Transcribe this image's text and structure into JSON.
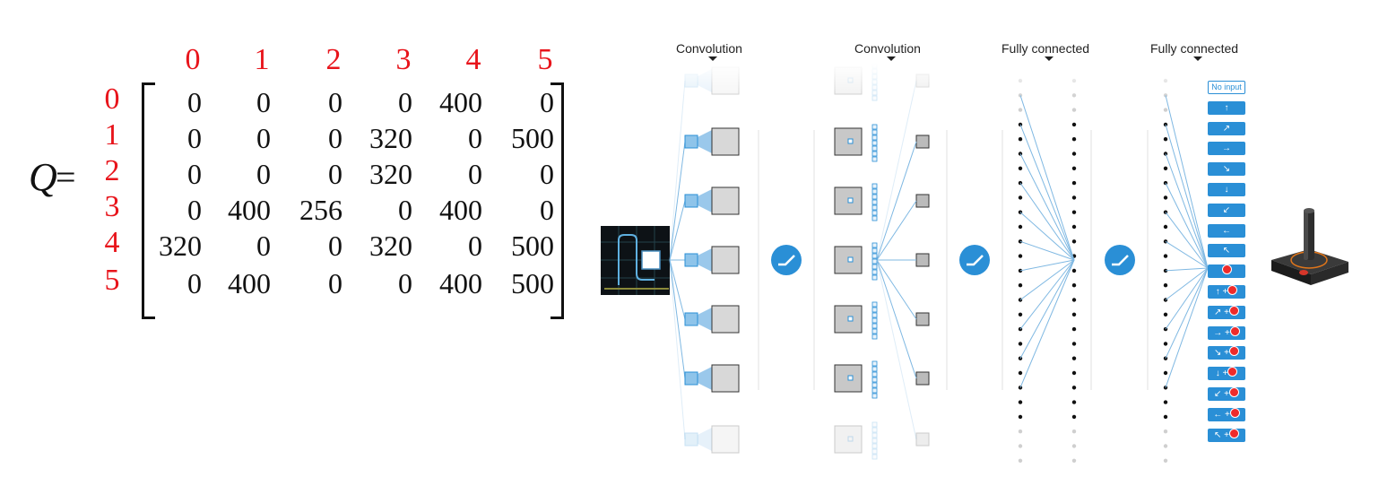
{
  "matrix": {
    "symbol": "Q",
    "equals": "=",
    "column_indices": [
      "0",
      "1",
      "2",
      "3",
      "4",
      "5"
    ],
    "row_indices": [
      "0",
      "1",
      "2",
      "3",
      "4",
      "5"
    ],
    "rows": [
      [
        "0",
        "0",
        "0",
        "0",
        "400",
        "0"
      ],
      [
        "0",
        "0",
        "0",
        "320",
        "0",
        "500"
      ],
      [
        "0",
        "0",
        "0",
        "320",
        "0",
        "0"
      ],
      [
        "0",
        "400",
        "256",
        "0",
        "400",
        "0"
      ],
      [
        "320",
        "0",
        "0",
        "320",
        "0",
        "500"
      ],
      [
        "0",
        "400",
        "0",
        "0",
        "400",
        "500"
      ]
    ],
    "index_color": "#e8141b"
  },
  "network": {
    "layer_titles": [
      "Convolution",
      "Convolution",
      "Fully connected",
      "Fully connected"
    ],
    "accent_color": "#2a8fd6",
    "activation_icon": "relu-icon",
    "output_icon": "joystick-icon",
    "actions": [
      {
        "label": "No input",
        "style": "outline"
      },
      {
        "label": "↑"
      },
      {
        "label": "↗"
      },
      {
        "label": "→"
      },
      {
        "label": "↘"
      },
      {
        "label": "↓"
      },
      {
        "label": "↙"
      },
      {
        "label": "←"
      },
      {
        "label": "↖"
      },
      {
        "label": "",
        "fire": true
      },
      {
        "label": "↑ +",
        "fire": true
      },
      {
        "label": "↗ +",
        "fire": true
      },
      {
        "label": "→ +",
        "fire": true
      },
      {
        "label": "↘ +",
        "fire": true
      },
      {
        "label": "↓ +",
        "fire": true
      },
      {
        "label": "↙ +",
        "fire": true
      },
      {
        "label": "← +",
        "fire": true
      },
      {
        "label": "↖ +",
        "fire": true
      }
    ]
  }
}
